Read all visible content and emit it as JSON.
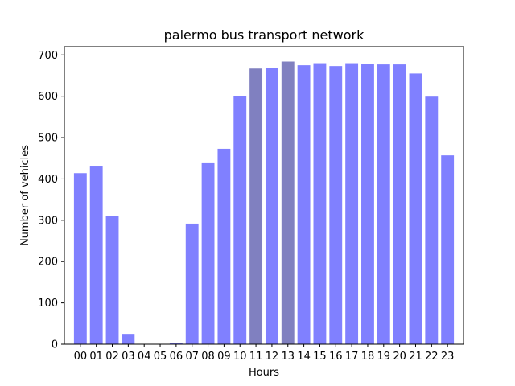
{
  "chart_data": {
    "type": "bar",
    "title": "palermo bus transport network",
    "xlabel": "Hours",
    "ylabel": "Number of vehicles",
    "categories": [
      "00",
      "01",
      "02",
      "03",
      "04",
      "05",
      "06",
      "07",
      "08",
      "09",
      "10",
      "11",
      "12",
      "13",
      "14",
      "15",
      "16",
      "17",
      "18",
      "19",
      "20",
      "21",
      "22",
      "23"
    ],
    "values": [
      414,
      430,
      311,
      25,
      0,
      0,
      2,
      292,
      438,
      473,
      601,
      667,
      669,
      684,
      675,
      680,
      673,
      680,
      679,
      677,
      677,
      655,
      599,
      457
    ],
    "bar_colors": [
      "#8080ff",
      "#8080ff",
      "#8080ff",
      "#8080ff",
      "#8080ff",
      "#8080ff",
      "#8080ff",
      "#8080ff",
      "#8080ff",
      "#8080ff",
      "#8080ff",
      "#8080c0",
      "#8080ff",
      "#8080c0",
      "#8080ff",
      "#8080ff",
      "#8080ff",
      "#8080ff",
      "#8080ff",
      "#8080ff",
      "#8080ff",
      "#8080ff",
      "#8080ff",
      "#8080ff"
    ],
    "ylim": [
      0,
      700
    ],
    "yticks": [
      0,
      100,
      200,
      300,
      400,
      500,
      600,
      700
    ],
    "grid": false,
    "legend": "none"
  }
}
